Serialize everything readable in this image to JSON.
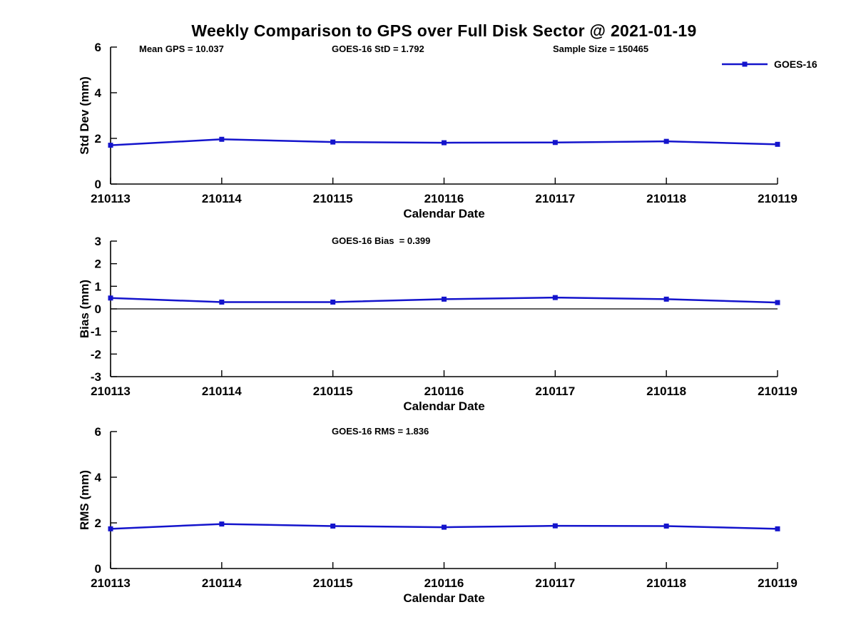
{
  "title": "Weekly Comparison to GPS over Full Disk Sector @ 2021-01-19",
  "legend": {
    "label": "GOES-16",
    "color": "#1414cc"
  },
  "stats": {
    "mean_gps": 10.037,
    "goes16_std": 1.792,
    "sample_size": 150465,
    "goes16_bias": 0.399,
    "goes16_rms": 1.836
  },
  "chart_data": [
    {
      "type": "line",
      "panel": "std-dev",
      "annotations": [
        "Mean GPS = 10.037",
        "GOES-16 StD = 1.792",
        "Sample Size = 150465"
      ],
      "categories": [
        "210113",
        "210114",
        "210115",
        "210116",
        "210117",
        "210118",
        "210119"
      ],
      "series": [
        {
          "name": "GOES-16",
          "values": [
            1.7,
            1.96,
            1.84,
            1.81,
            1.82,
            1.87,
            1.74
          ]
        }
      ],
      "xlabel": "Calendar Date",
      "ylabel": "Std Dev (mm)",
      "ylim": [
        0,
        6
      ],
      "yticks": [
        0,
        2,
        4,
        6
      ],
      "zero_line": false,
      "grid": false,
      "legend_position": "top-right",
      "marker": "square"
    },
    {
      "type": "line",
      "panel": "bias",
      "annotations": [
        "GOES-16 Bias  = 0.399"
      ],
      "categories": [
        "210113",
        "210114",
        "210115",
        "210116",
        "210117",
        "210118",
        "210119"
      ],
      "series": [
        {
          "name": "GOES-16",
          "values": [
            0.48,
            0.3,
            0.3,
            0.43,
            0.5,
            0.43,
            0.28
          ]
        }
      ],
      "xlabel": "Calendar Date",
      "ylabel": "Bias (mm)",
      "ylim": [
        -3,
        3
      ],
      "yticks": [
        -3,
        -2,
        -1,
        0,
        1,
        2,
        3
      ],
      "zero_line": true,
      "grid": false,
      "marker": "square"
    },
    {
      "type": "line",
      "panel": "rms",
      "annotations": [
        "GOES-16 RMS = 1.836"
      ],
      "categories": [
        "210113",
        "210114",
        "210115",
        "210116",
        "210117",
        "210118",
        "210119"
      ],
      "series": [
        {
          "name": "GOES-16",
          "values": [
            1.74,
            1.95,
            1.86,
            1.81,
            1.87,
            1.86,
            1.74
          ]
        }
      ],
      "xlabel": "Calendar Date",
      "ylabel": "RMS (mm)",
      "ylim": [
        0,
        6
      ],
      "yticks": [
        0,
        2,
        4,
        6
      ],
      "zero_line": false,
      "grid": false,
      "marker": "square"
    }
  ]
}
